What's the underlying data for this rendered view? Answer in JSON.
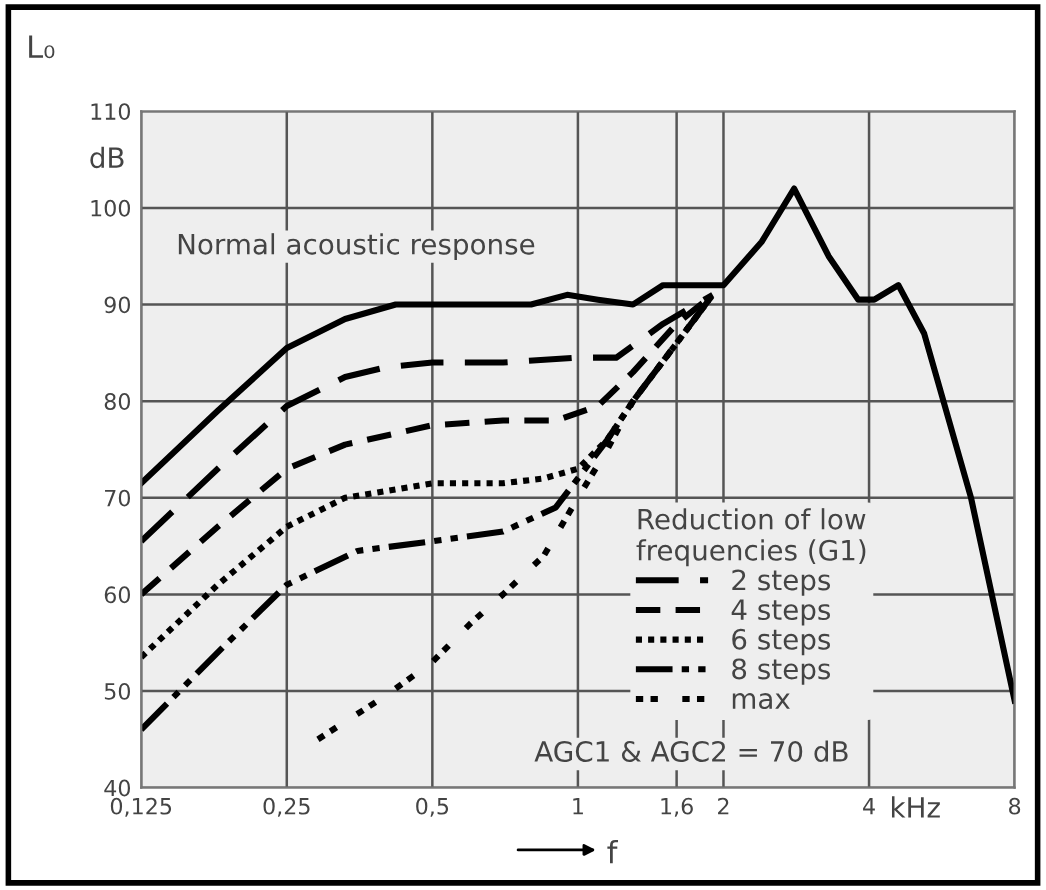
{
  "chart_data": {
    "type": "line",
    "ylabel": "L₀",
    "xlabel": "f",
    "log": "x",
    "xlim": [
      0.125,
      8
    ],
    "ylim": [
      40,
      110
    ],
    "xticks": [
      {
        "value": 0.125,
        "label": "0,125"
      },
      {
        "value": 0.25,
        "label": "0,25"
      },
      {
        "value": 0.5,
        "label": "0,5"
      },
      1,
      {
        "value": 1.6,
        "label": "1,6"
      },
      2,
      4,
      8
    ],
    "yticks": [
      40,
      50,
      60,
      70,
      80,
      90,
      100,
      110
    ],
    "grid": true,
    "legend": "bottom right",
    "legend_title": "Reduction of low\nfrequencies (G1)",
    "annotations": [
      "Normal acoustic response",
      "AGC1 & AGC2 = 70 dB",
      "dB",
      "kHz"
    ],
    "series": [
      {
        "color": "#000000",
        "line_style": "solid",
        "x": [
          0.125,
          0.18,
          0.25,
          0.33,
          0.42,
          0.6,
          0.8,
          0.95,
          1.1,
          1.3,
          1.5,
          2,
          2.4,
          2.8,
          3.3,
          3.8,
          4.1,
          4.6,
          5.2,
          6.5,
          8
        ],
        "values": [
          71.5,
          79,
          85.5,
          88.5,
          90,
          90,
          90,
          91,
          90.5,
          90,
          92,
          92,
          96.5,
          102,
          95,
          90.5,
          90.5,
          92,
          87,
          70,
          49
        ]
      },
      {
        "name": "2 steps",
        "color": "#000000",
        "line_style": "longdash",
        "x": [
          0.125,
          0.18,
          0.25,
          0.33,
          0.4,
          0.5,
          0.7,
          1,
          1.2,
          1.5,
          1.9
        ],
        "values": [
          65.5,
          73,
          79.5,
          82.5,
          83.5,
          84,
          84,
          84.5,
          84.5,
          88,
          91
        ]
      },
      {
        "name": "4 steps",
        "color": "#000000",
        "line_style": "dashed",
        "x": [
          0.125,
          0.18,
          0.25,
          0.33,
          0.5,
          0.7,
          0.9,
          1.1,
          1.3,
          1.6,
          1.9
        ],
        "values": [
          60,
          67,
          73,
          75.5,
          77.5,
          78,
          78,
          79.5,
          83,
          88,
          91
        ]
      },
      {
        "name": "6 steps",
        "color": "#000000",
        "line_style": "dotted",
        "x": [
          0.125,
          0.18,
          0.25,
          0.33,
          0.5,
          0.7,
          0.85,
          1,
          1.15,
          1.3,
          1.6,
          1.9
        ],
        "values": [
          53.5,
          61,
          67,
          70,
          71.5,
          71.5,
          72,
          73,
          76,
          80,
          86,
          91
        ]
      },
      {
        "name": "8 steps",
        "color": "#000000",
        "line_style": "dashdot",
        "x": [
          0.125,
          0.18,
          0.25,
          0.35,
          0.5,
          0.7,
          0.9,
          1,
          1.15,
          1.3,
          1.6,
          1.9
        ],
        "values": [
          46,
          54,
          61,
          64.5,
          65.5,
          66.5,
          69,
          72,
          76,
          80,
          86,
          91
        ]
      },
      {
        "name": "max",
        "color": "#000000",
        "line_style": "loosedot",
        "x": [
          0.29,
          0.4,
          0.5,
          0.6,
          0.7,
          0.85,
          1,
          1.15,
          1.3,
          1.6,
          1.9
        ],
        "values": [
          45,
          49.5,
          53,
          57,
          60,
          64,
          70,
          75,
          80,
          86,
          91
        ]
      }
    ]
  }
}
